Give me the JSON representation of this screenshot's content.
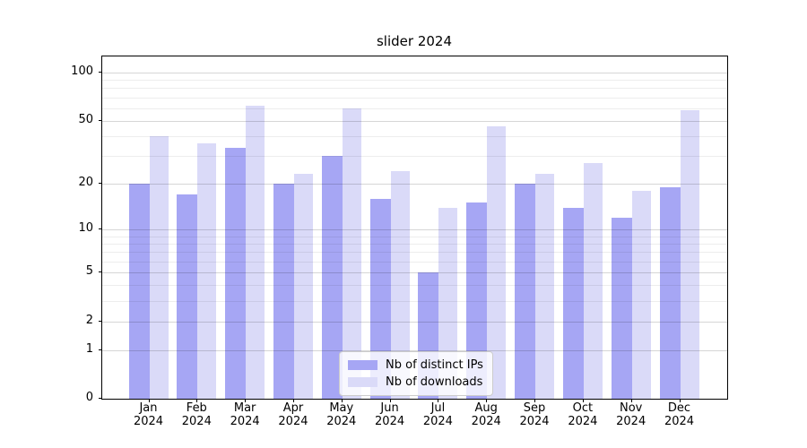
{
  "title": "slider 2024",
  "chart_data": {
    "type": "bar",
    "title": "slider 2024",
    "categories": [
      "Jan 2024",
      "Feb 2024",
      "Mar 2024",
      "Apr 2024",
      "May 2024",
      "Jun 2024",
      "Jul 2024",
      "Aug 2024",
      "Sep 2024",
      "Oct 2024",
      "Nov 2024",
      "Dec 2024"
    ],
    "series": [
      {
        "name": "Nb of distinct IPs",
        "color": "#a6a6f4",
        "values": [
          20,
          17,
          34,
          20,
          30,
          16,
          5,
          15,
          20,
          14,
          12,
          19
        ]
      },
      {
        "name": "Nb of downloads",
        "color": "#dadaf8",
        "values": [
          40,
          36,
          62,
          23,
          60,
          24,
          14,
          46,
          23,
          27,
          18,
          58
        ]
      }
    ],
    "xlabel": "",
    "ylabel": "",
    "yscale": "log1p",
    "ylim": [
      0,
      125
    ],
    "yticks": [
      0,
      1,
      2,
      5,
      10,
      20,
      50,
      100
    ],
    "yticks_minor": [
      3,
      4,
      6,
      7,
      8,
      9,
      30,
      40,
      60,
      70,
      80,
      90
    ],
    "grid": "on",
    "legend": {
      "position": "lower center inside",
      "entries": [
        "Nb of distinct IPs",
        "Nb of downloads"
      ]
    }
  }
}
